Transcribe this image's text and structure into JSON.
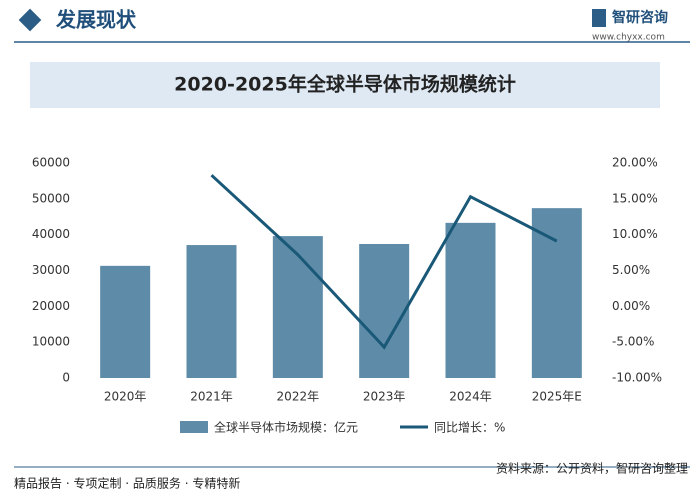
{
  "header": {
    "title": "发展现状",
    "logo": "智研咨询",
    "url": "www.chyxx.com"
  },
  "chart_data": {
    "type": "bar_line",
    "title": "2020-2025年全球半导体市场规模统计",
    "categories": [
      "2020年",
      "2021年",
      "2022年",
      "2023年",
      "2024年",
      "2025年E"
    ],
    "series": [
      {
        "name": "全球半导体市场规模：亿元",
        "color": "#5e8ca8",
        "type": "bar",
        "values": [
          31300,
          37100,
          39600,
          37400,
          43300,
          47400
        ]
      },
      {
        "name": "同比增长：%",
        "color": "#1a5878",
        "type": "line",
        "axis": "y2",
        "values": [
          null,
          18.3,
          7.2,
          -5.7,
          15.3,
          9.1
        ]
      }
    ],
    "ylim": [
      0,
      60000
    ],
    "yticks": [
      0,
      10000,
      20000,
      30000,
      40000,
      50000,
      60000
    ],
    "y2lim": [
      -10,
      20
    ],
    "y2ticks": [
      {
        "value": -10,
        "label": "-10.00%"
      },
      {
        "value": -5,
        "label": "-5.00%"
      },
      {
        "value": 0,
        "label": "0.00%"
      },
      {
        "value": 5,
        "label": "5.00%"
      },
      {
        "value": 10,
        "label": "10.00%"
      },
      {
        "value": 15,
        "label": "15.00%"
      },
      {
        "value": 20,
        "label": "20.00%"
      }
    ]
  },
  "footer": {
    "tagline": "精品报告 · 专项定制 · 品质服务 · 专精特新",
    "source": "资料来源：公开资料，智研咨询整理"
  }
}
